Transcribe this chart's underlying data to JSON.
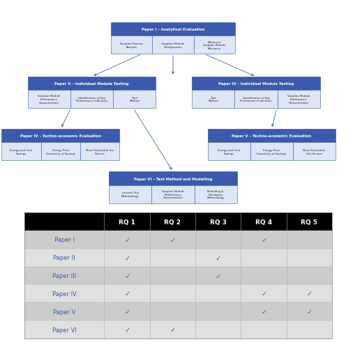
{
  "bg_color": "#ffffff",
  "box_header_color": "#3a5aad",
  "box_sub_color": "#dce6f4",
  "box_border_color": "#3a5aad",
  "arrow_color": "#5577cc",
  "text_white": "#ffffff",
  "text_dark": "#222222",
  "text_blue": "#3a5aad",
  "check_color": "#2a7a2a",
  "table": {
    "header_bg": "#000000",
    "header_text": "#ffffff",
    "row_bg_odd": "#cccccc",
    "row_bg_even": "#e0e0e0",
    "row_label_color": "#3a5aad",
    "columns": [
      "",
      "RQ 1",
      "RQ 2",
      "RQ 3",
      "RQ 4",
      "RQ 5"
    ],
    "rows": [
      {
        "label": "Paper I",
        "checks": [
          1,
          1,
          0,
          1,
          0
        ]
      },
      {
        "label": "Paper II",
        "checks": [
          1,
          0,
          1,
          0,
          0
        ]
      },
      {
        "label": "Paper III",
        "checks": [
          1,
          0,
          1,
          0,
          0
        ]
      },
      {
        "label": "Paper IV",
        "checks": [
          1,
          0,
          0,
          1,
          1
        ]
      },
      {
        "label": "Paper V",
        "checks": [
          1,
          0,
          0,
          1,
          1
        ]
      },
      {
        "label": "Paper VI",
        "checks": [
          1,
          1,
          0,
          0,
          0
        ]
      }
    ]
  }
}
